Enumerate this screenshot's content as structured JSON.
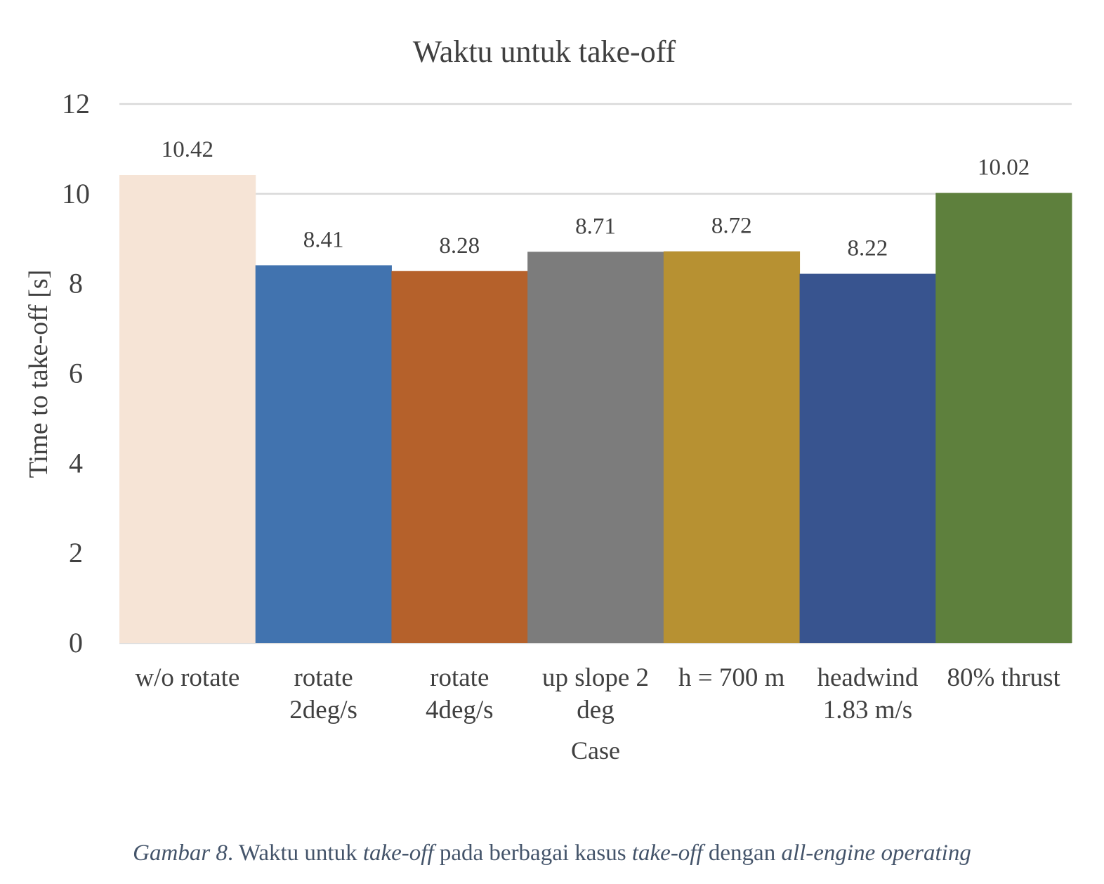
{
  "chart_data": {
    "type": "bar",
    "title": "Waktu untuk take-off",
    "xlabel": "Case",
    "ylabel": "Time to take-off [s]",
    "ylim": [
      0,
      12
    ],
    "yticks": [
      "0",
      "2",
      "4",
      "6",
      "8",
      "10",
      "12"
    ],
    "grid": true,
    "legend": "none",
    "categories": [
      [
        "w/o rotate"
      ],
      [
        "rotate",
        "2deg/s"
      ],
      [
        "rotate",
        "4deg/s"
      ],
      [
        "up slope 2",
        "deg"
      ],
      [
        "h = 700 m"
      ],
      [
        "headwind",
        "1.83 m/s"
      ],
      [
        "80% thrust"
      ]
    ],
    "values": [
      10.42,
      8.41,
      8.28,
      8.71,
      8.72,
      8.22,
      10.02
    ],
    "value_labels": [
      "10.42",
      "8.41",
      "8.28",
      "8.71",
      "8.72",
      "8.22",
      "10.02"
    ],
    "colors": [
      "#f6e4d6",
      "#4173af",
      "#b5612b",
      "#7c7c7c",
      "#b79132",
      "#38548f",
      "#5e803d"
    ]
  },
  "caption": {
    "figure_label": "Gambar 8",
    "sep": ". ",
    "t1": "Waktu untuk ",
    "t2": "take-off",
    "t3": " pada berbagai kasus ",
    "t4": "take-off",
    "t5": " dengan ",
    "t6": "all-engine operating"
  }
}
